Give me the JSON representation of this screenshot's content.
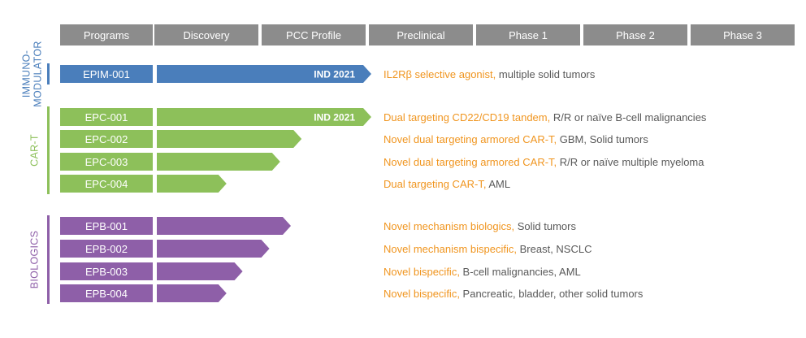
{
  "chart_data": {
    "type": "bar",
    "stages": [
      "Programs",
      "Discovery",
      "PCC Profile",
      "Preclinical",
      "Phase 1",
      "Phase 2",
      "Phase 3"
    ],
    "colors": {
      "header": "#8c8c8c",
      "immunomodulator": "#4a7ebb",
      "cart": "#8dc05a",
      "biologics": "#8e5fa8",
      "highlight": "#f0951f",
      "text": "#595959"
    },
    "groups": [
      {
        "name": "IMMUNO-\nMODULATOR",
        "name_lines": [
          "IMMUNO-",
          "MODULATOR"
        ],
        "color": "#4a7ebb",
        "programs": [
          {
            "id": "EPIM-001",
            "progress": 2.0,
            "label": "IND 2021",
            "highlight": "IL2Rβ selective agonist,",
            "detail": "multiple solid tumors"
          }
        ]
      },
      {
        "name": "CAR-T",
        "name_lines": [
          "CAR-T"
        ],
        "color": "#8dc05a",
        "programs": [
          {
            "id": "EPC-001",
            "progress": 2.0,
            "label": "IND 2021",
            "highlight": "Dual targeting CD22/CD19 tandem,",
            "detail": "R/R or naïve B-cell malignancies"
          },
          {
            "id": "EPC-002",
            "progress": 1.35,
            "label": "",
            "highlight": "Novel dual targeting armored CAR-T,",
            "detail": "GBM, Solid tumors"
          },
          {
            "id": "EPC-003",
            "progress": 1.15,
            "label": "",
            "highlight": "Novel dual targeting armored CAR-T,",
            "detail": "R/R or naïve multiple myeloma"
          },
          {
            "id": "EPC-004",
            "progress": 0.65,
            "label": "",
            "highlight": "Dual targeting CAR-T,",
            "detail": "AML"
          }
        ]
      },
      {
        "name": "BIOLOGICS",
        "name_lines": [
          "BIOLOGICS"
        ],
        "color": "#8e5fa8",
        "programs": [
          {
            "id": "EPB-001",
            "progress": 1.25,
            "label": "",
            "highlight": "Novel mechanism biologics,",
            "detail": "Solid tumors"
          },
          {
            "id": "EPB-002",
            "progress": 1.05,
            "label": "",
            "highlight": "Novel mechanism bispecific,",
            "detail": "Breast, NSCLC"
          },
          {
            "id": "EPB-003",
            "progress": 0.8,
            "label": "",
            "highlight": "Novel bispecific,",
            "detail": "B-cell malignancies, AML"
          },
          {
            "id": "EPB-004",
            "progress": 0.65,
            "label": "",
            "highlight": "Novel bispecific,",
            "detail": "Pancreatic, bladder, other solid tumors"
          }
        ]
      }
    ]
  }
}
